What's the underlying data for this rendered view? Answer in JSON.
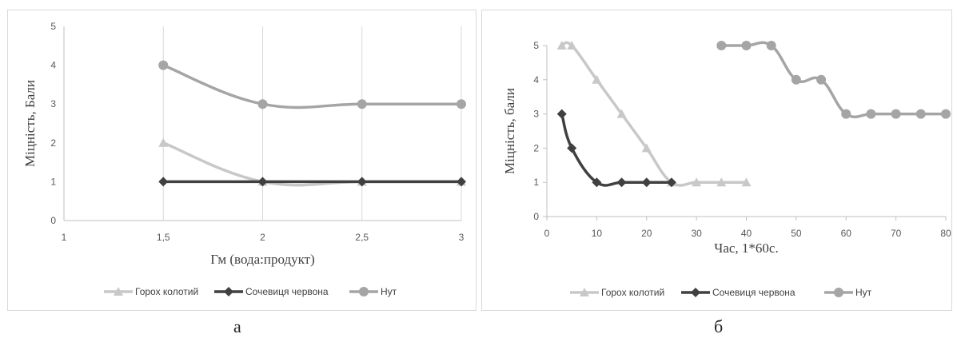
{
  "figure_labels": {
    "a": "а",
    "b": "б"
  },
  "legend": {
    "series": [
      "Горох колотий",
      "Сочевиця червона",
      "Нут"
    ]
  },
  "styles": {
    "colors": {
      "Горох колотий": "#c8c8c8",
      "Сочевиця червона": "#404040",
      "Нут": "#a5a5a5"
    },
    "markers": {
      "Горох колотий": "triangle",
      "Сочевиця червона": "diamond",
      "Нут": "circle"
    },
    "gridline_color": "#d9d9d9"
  },
  "chart_data": [
    {
      "id": "a",
      "type": "line",
      "xlabel": "Гм (вода:продукт)",
      "ylabel": "Міцність,  Бали",
      "xlim": [
        1,
        3
      ],
      "ylim": [
        0,
        5
      ],
      "xticks": [
        "1",
        "1,5",
        "2",
        "2,5",
        "3"
      ],
      "yticks": [
        "0",
        "1",
        "2",
        "3",
        "4",
        "5"
      ],
      "grid": "vertical",
      "legend_position": "bottom",
      "series": [
        {
          "name": "Горох колотий",
          "x": [
            1.5,
            2,
            2.5,
            3
          ],
          "y": [
            2,
            1,
            1,
            1
          ]
        },
        {
          "name": "Сочевиця червона",
          "x": [
            1.5,
            2,
            2.5,
            3
          ],
          "y": [
            1,
            1,
            1,
            1
          ]
        },
        {
          "name": "Нут",
          "x": [
            1.5,
            2,
            2.5,
            3
          ],
          "y": [
            4,
            3,
            3,
            3
          ]
        }
      ]
    },
    {
      "id": "b",
      "type": "line",
      "xlabel": "Час, 1*60с.",
      "ylabel": "Міцність,  бали",
      "xlim": [
        0,
        80
      ],
      "ylim": [
        0,
        5
      ],
      "xticks": [
        "0",
        "10",
        "20",
        "30",
        "40",
        "50",
        "60",
        "70",
        "80"
      ],
      "yticks": [
        "0",
        "1",
        "2",
        "3",
        "4",
        "5"
      ],
      "grid": "none",
      "legend_position": "bottom",
      "series": [
        {
          "name": "Горох колотий",
          "x": [
            3,
            5,
            10,
            15,
            20,
            25,
            30,
            35,
            40
          ],
          "y": [
            5,
            5,
            4,
            3,
            2,
            1,
            1,
            1,
            1
          ]
        },
        {
          "name": "Сочевиця червона",
          "x": [
            3,
            5,
            10,
            15,
            20,
            25
          ],
          "y": [
            3,
            2,
            1,
            1,
            1,
            1
          ]
        },
        {
          "name": "Нут",
          "x": [
            35,
            40,
            45,
            50,
            55,
            60,
            65,
            70,
            75,
            80
          ],
          "y": [
            5,
            5,
            5,
            4,
            4,
            3,
            3,
            3,
            3,
            3
          ]
        }
      ]
    }
  ]
}
